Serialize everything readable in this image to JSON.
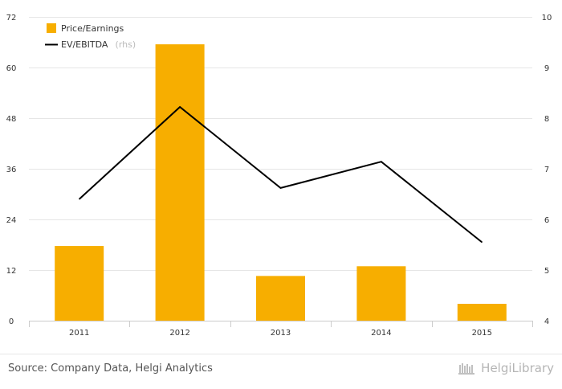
{
  "chart_data": {
    "type": "bar",
    "categories": [
      "2011",
      "2012",
      "2013",
      "2014",
      "2015"
    ],
    "series": [
      {
        "name": "Price/Earnings",
        "type": "bar",
        "axis": "left",
        "color": "#f7ae00",
        "values": [
          17.7,
          65.5,
          10.6,
          12.9,
          4.0
        ]
      },
      {
        "name": "EV/EBITDA",
        "type": "line",
        "axis": "right",
        "color": "#000000",
        "values": [
          6.4,
          8.22,
          6.62,
          7.14,
          5.55
        ]
      }
    ],
    "left_axis": {
      "min": 0,
      "max": 72,
      "ticks": [
        "0",
        "12",
        "24",
        "36",
        "48",
        "60",
        "72"
      ]
    },
    "right_axis": {
      "min": 4,
      "max": 10,
      "ticks": [
        "4",
        "5",
        "6",
        "7",
        "8",
        "9",
        "10"
      ]
    },
    "legend": {
      "bar_label": "Price/Earnings",
      "line_label": "EV/EBITDA",
      "line_sub": "(rhs)",
      "position": "top-left"
    },
    "grid": true
  },
  "footer": {
    "source": "Source: Company Data, Helgi Analytics",
    "brand": "HelgiLibrary"
  }
}
